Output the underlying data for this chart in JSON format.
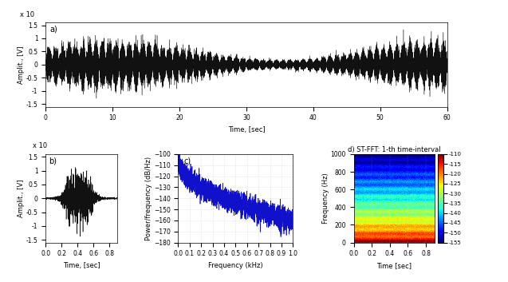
{
  "fig_width": 6.37,
  "fig_height": 3.53,
  "dpi": 100,
  "panel_a": {
    "label": "a)",
    "xlabel": "Time, [sec]",
    "ylabel": "Amplit., [V]",
    "xlim": [
      0,
      60
    ],
    "ylim_scale": 1.6,
    "yticks_scaled": [
      -1.5,
      -1,
      -0.5,
      0,
      0.5,
      1,
      1.5
    ],
    "xticks": [
      0,
      10,
      20,
      30,
      40,
      50,
      60
    ],
    "scale_label": "x 10",
    "line_color": "#111111",
    "line_width": 0.25
  },
  "panel_b": {
    "label": "b)",
    "xlabel": "Time, [sec]",
    "ylabel": "Amplit., [V]",
    "xlim": [
      0,
      0.9
    ],
    "yticks_scaled": [
      -1.5,
      -1,
      -0.5,
      0,
      0.5,
      1,
      1.5
    ],
    "xticks": [
      0,
      0.2,
      0.4,
      0.6,
      0.8
    ],
    "scale_label": "x 10",
    "line_color": "#111111",
    "line_width": 0.4
  },
  "panel_c": {
    "label": "c)",
    "xlabel": "Frequency (kHz)",
    "ylabel": "Power/frequency (dB/Hz)",
    "xlim": [
      0,
      1
    ],
    "ylim": [
      -180,
      -100
    ],
    "yticks": [
      -180,
      -170,
      -160,
      -150,
      -140,
      -130,
      -120,
      -110,
      -100
    ],
    "xticks": [
      0,
      0.1,
      0.2,
      0.3,
      0.4,
      0.5,
      0.6,
      0.7,
      0.8,
      0.9,
      1.0
    ],
    "line_color": "#1111cc",
    "line_width": 0.5
  },
  "panel_d": {
    "label": "d) ST-FFT: 1-th time-interval",
    "xlabel": "Time [sec]",
    "ylabel": "Frequency (Hz)",
    "xlim": [
      0,
      0.9
    ],
    "ylim": [
      0,
      1000
    ],
    "yticks": [
      0,
      200,
      400,
      600,
      800,
      1000
    ],
    "xticks": [
      0,
      0.2,
      0.4,
      0.6,
      0.8
    ],
    "colorbar_ticks": [
      -155,
      -150,
      -145,
      -140,
      -135,
      -130,
      -125,
      -120,
      -115,
      -110
    ],
    "cmap_min": -155,
    "cmap_max": -110
  },
  "background_color": "#ffffff",
  "grid_color": "#bbbbbb",
  "grid_linestyle": ":"
}
